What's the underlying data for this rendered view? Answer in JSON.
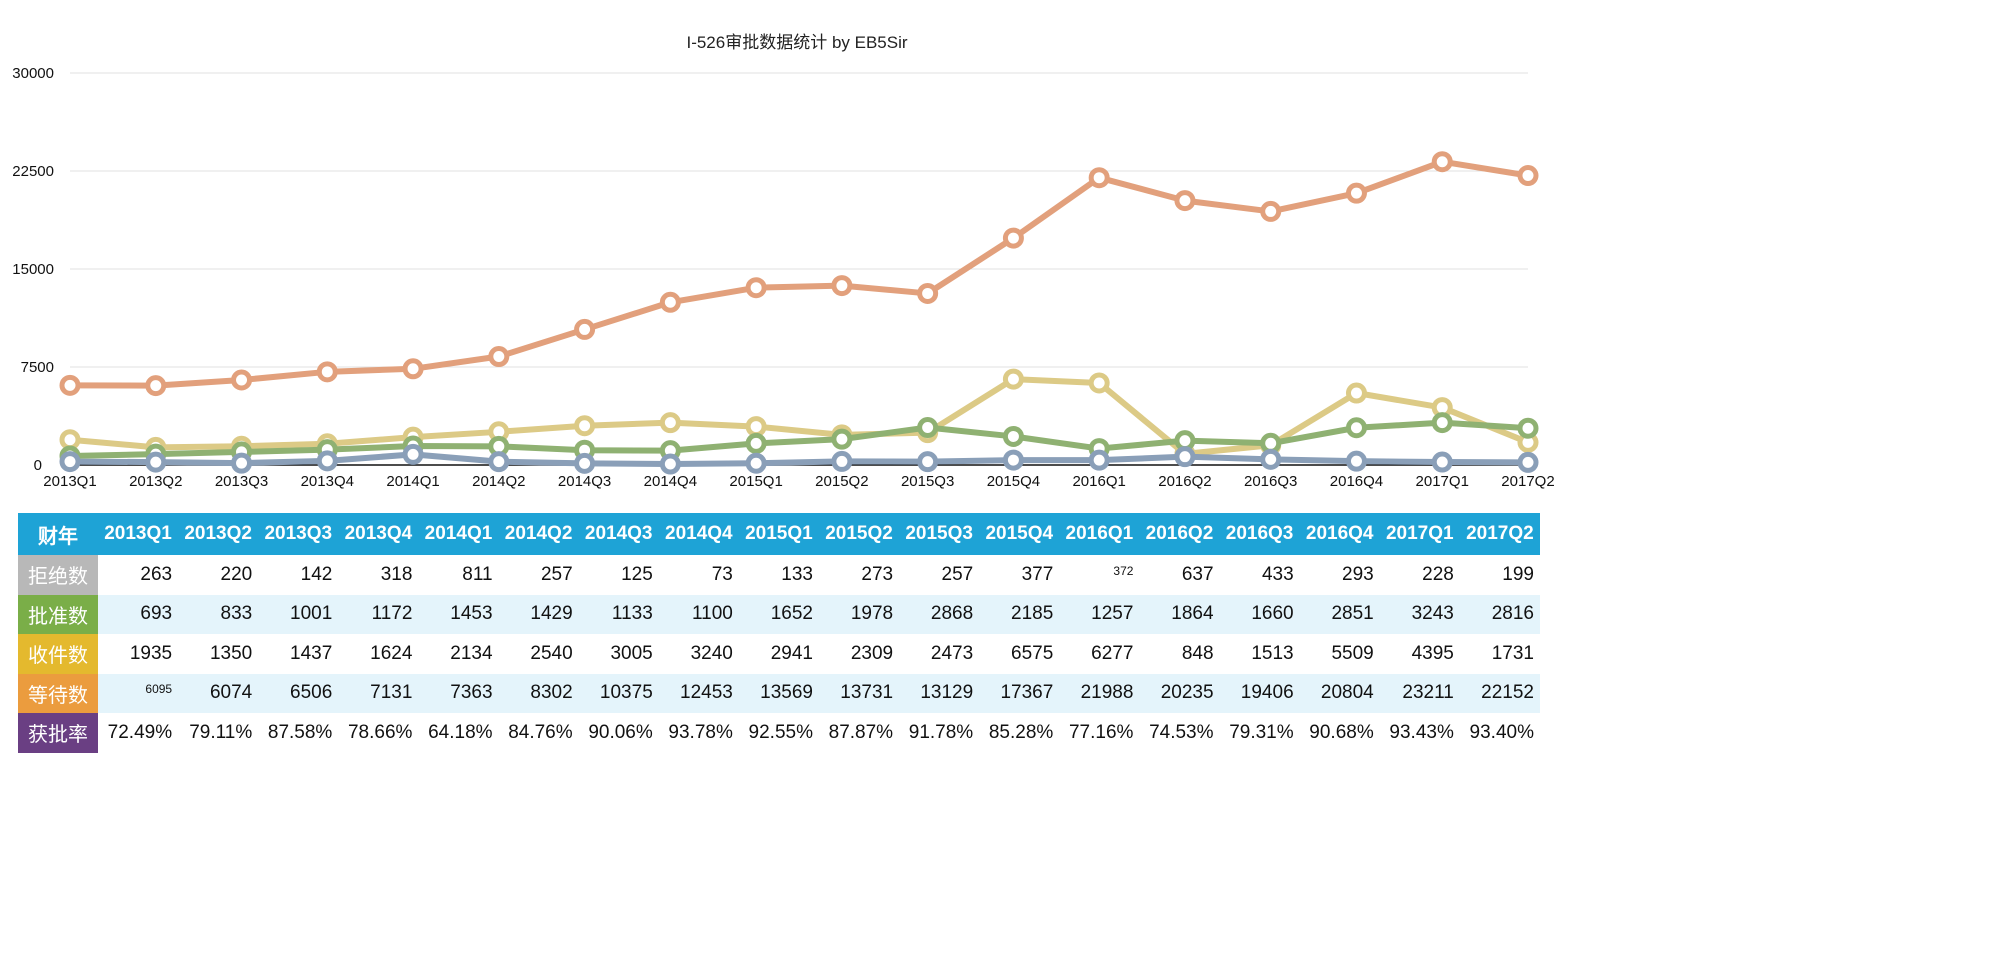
{
  "chart_data": {
    "type": "line",
    "title": "I-526审批数据统计 by EB5Sir",
    "xlabel": "",
    "ylabel": "",
    "ylim": [
      0,
      30000
    ],
    "yticks": [
      "0",
      "7500",
      "15000",
      "22500",
      "30000"
    ],
    "grid": true,
    "categories": [
      "2013Q1",
      "2013Q2",
      "2013Q3",
      "2013Q4",
      "2014Q1",
      "2014Q2",
      "2014Q3",
      "2014Q4",
      "2015Q1",
      "2015Q2",
      "2015Q3",
      "2015Q4",
      "2016Q1",
      "2016Q2",
      "2016Q3",
      "2016Q4",
      "2017Q1",
      "2017Q2"
    ],
    "series": [
      {
        "name": "等待数",
        "color": "#e2a07c",
        "values": [
          6095,
          6074,
          6506,
          7131,
          7363,
          8302,
          10375,
          12453,
          13569,
          13731,
          13129,
          17367,
          21988,
          20235,
          19406,
          20804,
          23211,
          22152
        ]
      },
      {
        "name": "收件数",
        "color": "#dcca86",
        "values": [
          1935,
          1350,
          1437,
          1624,
          2134,
          2540,
          3005,
          3240,
          2941,
          2309,
          2473,
          6575,
          6277,
          848,
          1513,
          5509,
          4395,
          1731
        ]
      },
      {
        "name": "批准数",
        "color": "#8fb172",
        "values": [
          693,
          833,
          1001,
          1172,
          1453,
          1429,
          1133,
          1100,
          1652,
          1978,
          2868,
          2185,
          1257,
          1864,
          1660,
          2851,
          3243,
          2816
        ]
      },
      {
        "name": "拒绝数",
        "color": "#8a9fb8",
        "values": [
          263,
          220,
          142,
          318,
          811,
          257,
          125,
          73,
          133,
          273,
          257,
          377,
          372,
          637,
          433,
          293,
          228,
          199
        ]
      }
    ]
  },
  "table": {
    "header_label": "财年",
    "header_color": "#1ea3d6",
    "rows": [
      {
        "label": "拒绝数",
        "color": "#b8b8b8",
        "values": [
          "263",
          "220",
          "142",
          "318",
          "811",
          "257",
          "125",
          "73",
          "133",
          "273",
          "257",
          "377",
          "372",
          "637",
          "433",
          "293",
          "228",
          "199"
        ]
      },
      {
        "label": "批准数",
        "color": "#7aae48",
        "values": [
          "693",
          "833",
          "1001",
          "1172",
          "1453",
          "1429",
          "1133",
          "1100",
          "1652",
          "1978",
          "2868",
          "2185",
          "1257",
          "1864",
          "1660",
          "2851",
          "3243",
          "2816"
        ]
      },
      {
        "label": "收件数",
        "color": "#e4b92e",
        "values": [
          "1935",
          "1350",
          "1437",
          "1624",
          "2134",
          "2540",
          "3005",
          "3240",
          "2941",
          "2309",
          "2473",
          "6575",
          "6277",
          "848",
          "1513",
          "5509",
          "4395",
          "1731"
        ]
      },
      {
        "label": "等待数",
        "color": "#eb9c3e",
        "values": [
          "6095",
          "6074",
          "6506",
          "7131",
          "7363",
          "8302",
          "10375",
          "12453",
          "13569",
          "13731",
          "13129",
          "17367",
          "21988",
          "20235",
          "19406",
          "20804",
          "23211",
          "22152"
        ]
      },
      {
        "label": "获批率",
        "color": "#6a3f83",
        "values": [
          "72.49%",
          "79.11%",
          "87.58%",
          "78.66%",
          "64.18%",
          "84.76%",
          "90.06%",
          "93.78%",
          "92.55%",
          "87.87%",
          "91.78%",
          "85.28%",
          "77.16%",
          "74.53%",
          "79.31%",
          "90.68%",
          "93.43%",
          "93.40%"
        ]
      }
    ]
  }
}
